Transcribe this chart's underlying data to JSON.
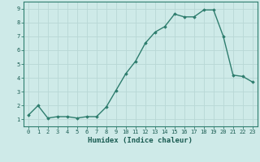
{
  "x": [
    0,
    1,
    2,
    3,
    4,
    5,
    6,
    7,
    8,
    9,
    10,
    11,
    12,
    13,
    14,
    15,
    16,
    17,
    18,
    19,
    20,
    21,
    22,
    23
  ],
  "y": [
    1.3,
    2.0,
    1.1,
    1.2,
    1.2,
    1.1,
    1.2,
    1.2,
    1.9,
    3.1,
    4.3,
    5.2,
    6.5,
    7.3,
    7.7,
    8.6,
    8.4,
    8.4,
    8.9,
    8.9,
    7.0,
    4.2,
    4.1,
    3.7
  ],
  "line_color": "#2e7d6e",
  "marker": "D",
  "marker_size": 1.8,
  "linewidth": 1.0,
  "xlabel": "Humidex (Indice chaleur)",
  "xlabel_fontsize": 6.5,
  "tick_fontsize": 5.0,
  "xlim": [
    -0.5,
    23.5
  ],
  "ylim": [
    0.5,
    9.5
  ],
  "yticks": [
    1,
    2,
    3,
    4,
    5,
    6,
    7,
    8,
    9
  ],
  "xticks": [
    0,
    1,
    2,
    3,
    4,
    5,
    6,
    7,
    8,
    9,
    10,
    11,
    12,
    13,
    14,
    15,
    16,
    17,
    18,
    19,
    20,
    21,
    22,
    23
  ],
  "background_color": "#ceeae8",
  "grid_color": "#b8d8d6",
  "tick_color": "#2e7d6e",
  "label_color": "#1a5c52",
  "spine_color": "#2e7d6e"
}
